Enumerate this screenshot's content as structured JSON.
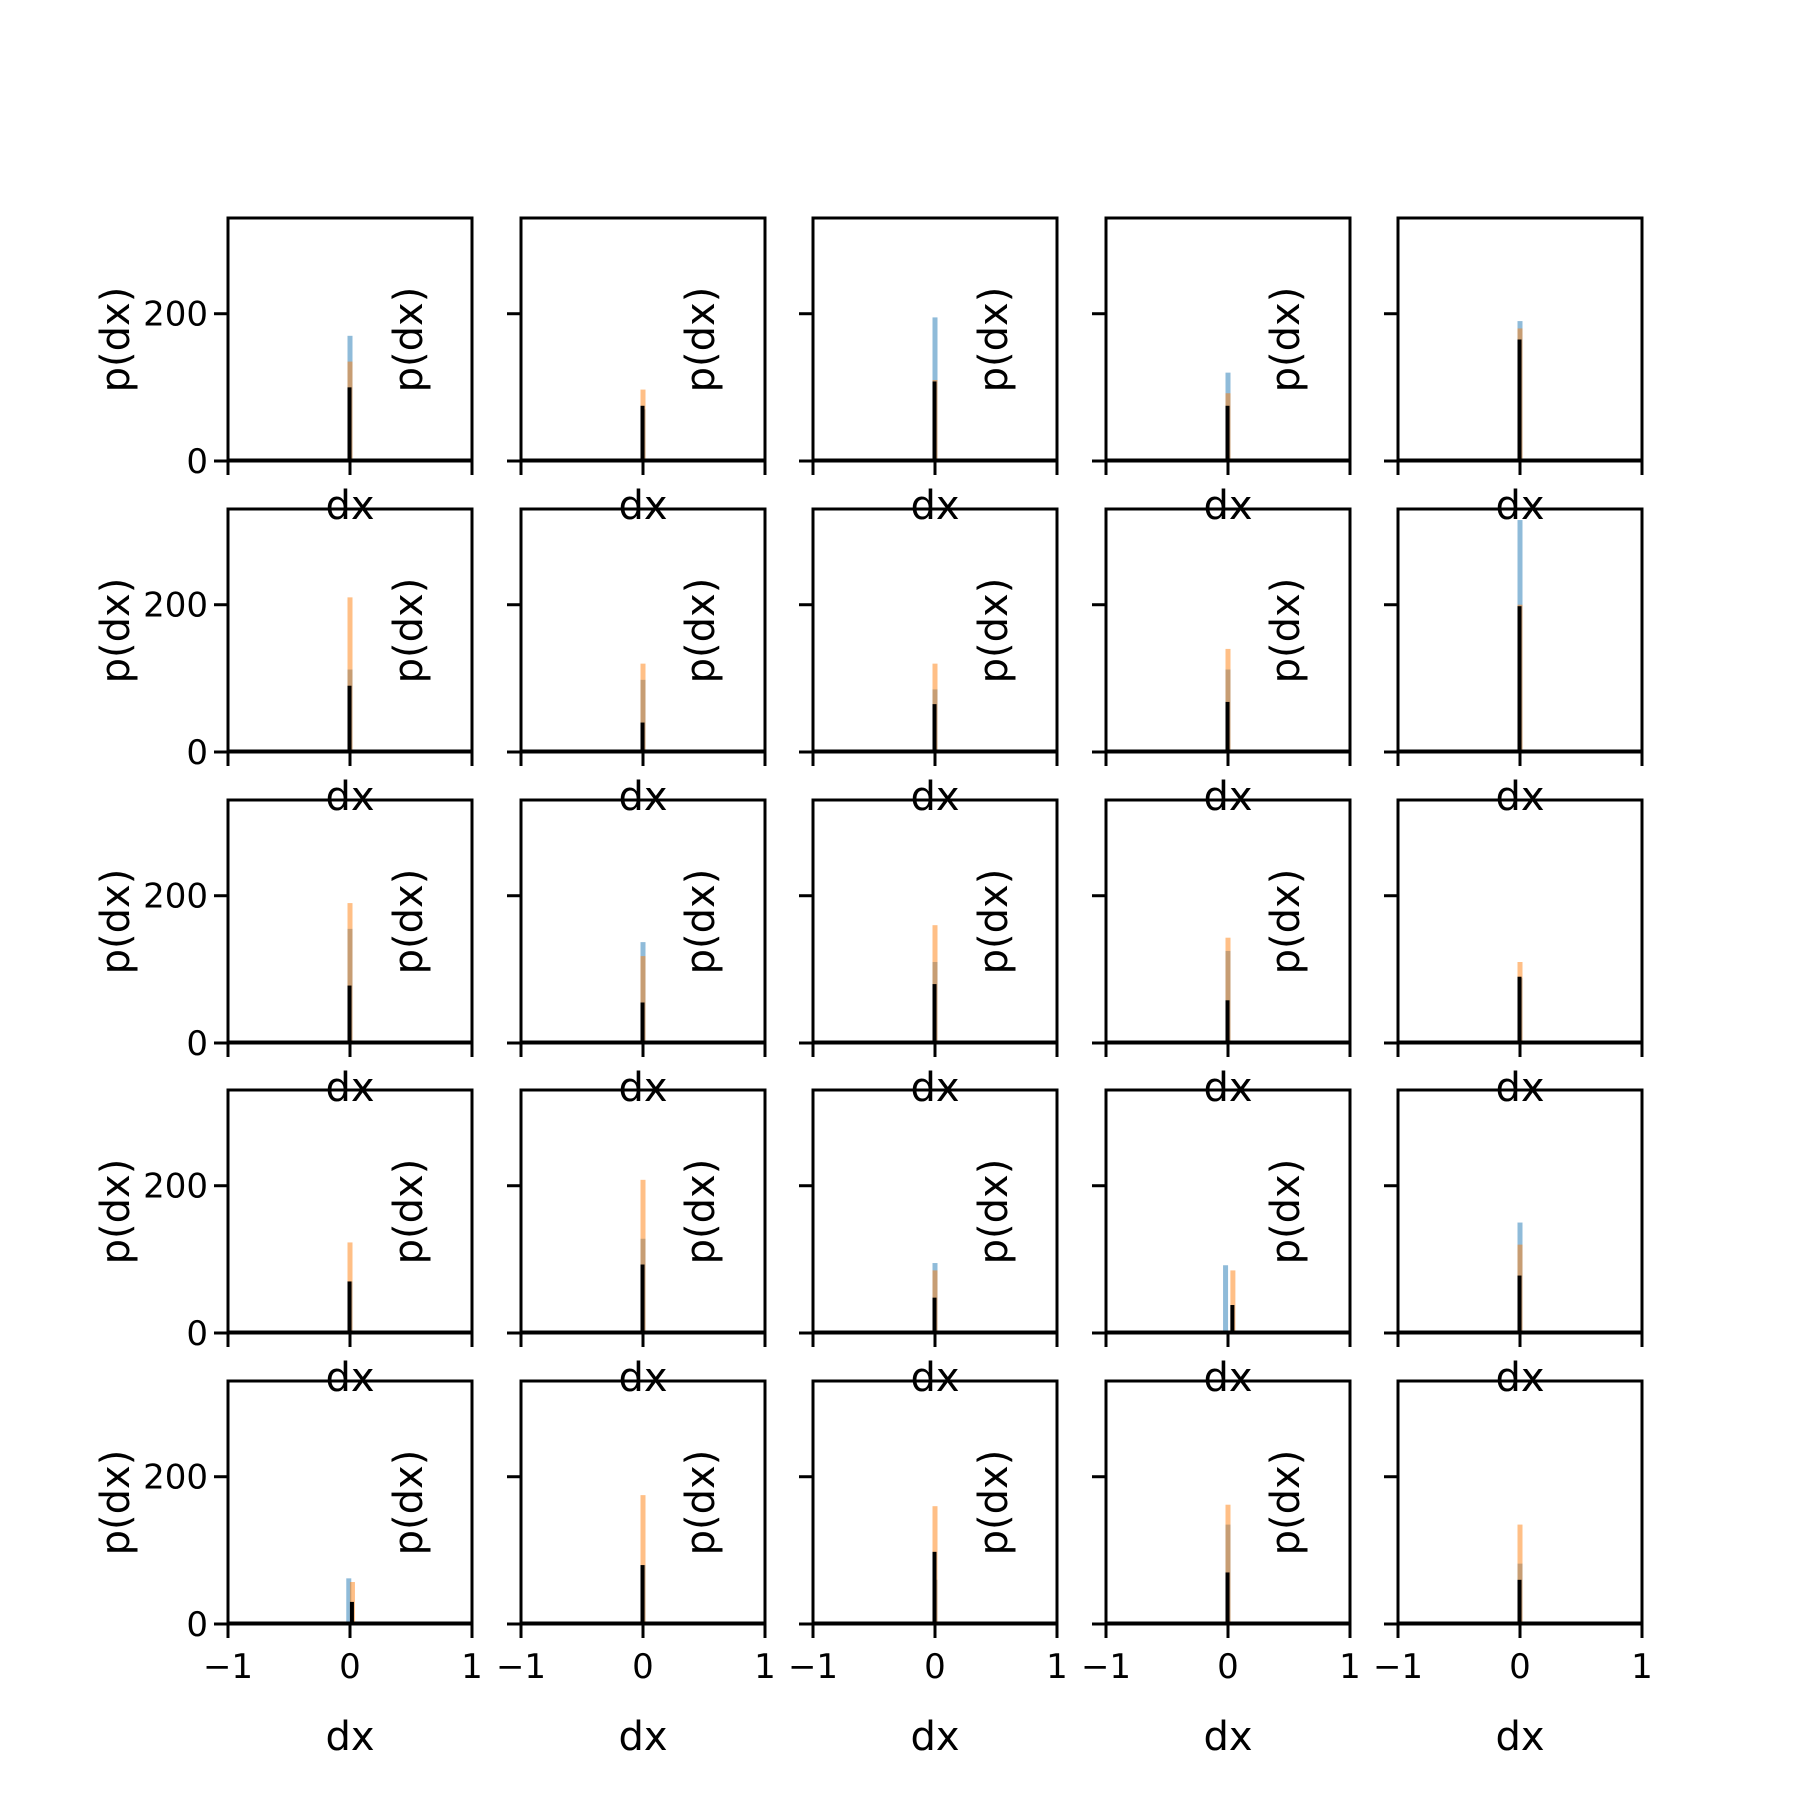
{
  "chart_data": {
    "type": "histogram-grid",
    "rows": 5,
    "cols": 5,
    "xlabel": "dx",
    "ylabel": "p(dx)",
    "xlim": [
      -1,
      1
    ],
    "ylim": [
      0,
      330
    ],
    "xticks": [
      -1,
      0,
      1
    ],
    "xtick_labels": [
      "−1",
      "0",
      "1"
    ],
    "yticks": [
      0,
      200
    ],
    "ytick_labels": [
      "0",
      "200"
    ],
    "colors": {
      "blue": "#1f77b4",
      "orange": "#ff7f0e",
      "black": "#000000"
    },
    "panels": [
      {
        "blue": {
          "x": 0.0,
          "y": 170
        },
        "orange": {
          "x": 0.0,
          "y": 135
        },
        "black": {
          "x": 0.0,
          "y": 100
        }
      },
      {
        "blue": {
          "x": 0.0,
          "y": 70
        },
        "orange": {
          "x": 0.0,
          "y": 97
        },
        "black": {
          "x": 0.0,
          "y": 75
        }
      },
      {
        "blue": {
          "x": 0.0,
          "y": 195
        },
        "orange": {
          "x": 0.0,
          "y": 110
        },
        "black": {
          "x": 0.0,
          "y": 108
        }
      },
      {
        "blue": {
          "x": 0.0,
          "y": 120
        },
        "orange": {
          "x": 0.0,
          "y": 92
        },
        "black": {
          "x": 0.0,
          "y": 75
        }
      },
      {
        "blue": {
          "x": 0.0,
          "y": 190
        },
        "orange": {
          "x": 0.0,
          "y": 180
        },
        "black": {
          "x": 0.0,
          "y": 165
        }
      },
      {
        "blue": {
          "x": 0.0,
          "y": 112
        },
        "orange": {
          "x": 0.0,
          "y": 210
        },
        "black": {
          "x": 0.0,
          "y": 90
        }
      },
      {
        "blue": {
          "x": 0.0,
          "y": 98
        },
        "orange": {
          "x": 0.0,
          "y": 120
        },
        "black": {
          "x": 0.0,
          "y": 40
        }
      },
      {
        "blue": {
          "x": 0.0,
          "y": 85
        },
        "orange": {
          "x": 0.0,
          "y": 120
        },
        "black": {
          "x": 0.0,
          "y": 65
        }
      },
      {
        "blue": {
          "x": 0.0,
          "y": 112
        },
        "orange": {
          "x": 0.0,
          "y": 140
        },
        "black": {
          "x": 0.0,
          "y": 68
        }
      },
      {
        "blue": {
          "x": 0.0,
          "y": 315
        },
        "orange": {
          "x": 0.0,
          "y": 200
        },
        "black": {
          "x": 0.0,
          "y": 198
        }
      },
      {
        "blue": {
          "x": 0.0,
          "y": 155
        },
        "orange": {
          "x": 0.0,
          "y": 190
        },
        "black": {
          "x": 0.0,
          "y": 78
        }
      },
      {
        "blue": {
          "x": 0.0,
          "y": 137
        },
        "orange": {
          "x": 0.0,
          "y": 118
        },
        "black": {
          "x": 0.0,
          "y": 55
        }
      },
      {
        "blue": {
          "x": 0.0,
          "y": 110
        },
        "orange": {
          "x": 0.0,
          "y": 160
        },
        "black": {
          "x": 0.0,
          "y": 80
        }
      },
      {
        "blue": {
          "x": 0.0,
          "y": 125
        },
        "orange": {
          "x": 0.0,
          "y": 143
        },
        "black": {
          "x": 0.0,
          "y": 58
        }
      },
      {
        "blue": {
          "x": 0.0,
          "y": 88
        },
        "orange": {
          "x": 0.0,
          "y": 110
        },
        "black": {
          "x": 0.0,
          "y": 90
        }
      },
      {
        "blue": {
          "x": 0.0,
          "y": 70
        },
        "orange": {
          "x": 0.0,
          "y": 123
        },
        "black": {
          "x": 0.0,
          "y": 70
        }
      },
      {
        "blue": {
          "x": 0.0,
          "y": 128
        },
        "orange": {
          "x": 0.0,
          "y": 208
        },
        "black": {
          "x": 0.0,
          "y": 93
        }
      },
      {
        "blue": {
          "x": 0.0,
          "y": 95
        },
        "orange": {
          "x": 0.0,
          "y": 85
        },
        "black": {
          "x": 0.0,
          "y": 48
        }
      },
      {
        "blue": {
          "x": -0.02,
          "y": 92
        },
        "orange": {
          "x": 0.04,
          "y": 85
        },
        "black": {
          "x": 0.04,
          "y": 38
        }
      },
      {
        "blue": {
          "x": 0.0,
          "y": 150
        },
        "orange": {
          "x": 0.0,
          "y": 120
        },
        "black": {
          "x": 0.0,
          "y": 78
        }
      },
      {
        "blue": {
          "x": -0.01,
          "y": 62
        },
        "orange": {
          "x": 0.02,
          "y": 57
        },
        "black": {
          "x": 0.02,
          "y": 30
        }
      },
      {
        "blue": {
          "x": 0.0,
          "y": 80
        },
        "orange": {
          "x": 0.0,
          "y": 175
        },
        "black": {
          "x": 0.0,
          "y": 80
        }
      },
      {
        "blue": {
          "x": 0.0,
          "y": 60
        },
        "orange": {
          "x": 0.0,
          "y": 160
        },
        "black": {
          "x": 0.0,
          "y": 98
        }
      },
      {
        "blue": {
          "x": 0.0,
          "y": 135
        },
        "orange": {
          "x": 0.0,
          "y": 162
        },
        "black": {
          "x": 0.0,
          "y": 70
        }
      },
      {
        "blue": {
          "x": 0.0,
          "y": 82
        },
        "orange": {
          "x": 0.0,
          "y": 135
        },
        "black": {
          "x": 0.0,
          "y": 60
        }
      }
    ]
  }
}
